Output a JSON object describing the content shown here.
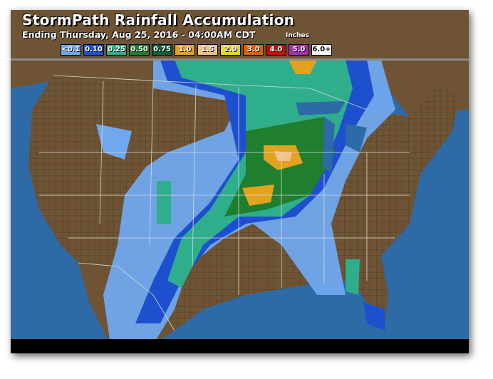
{
  "header": {
    "title": "StormPath Rainfall Accumulation",
    "subtitle": "Ending Thursday, Aug 25, 2016 - 04:00AM CDT",
    "units": "Inches"
  },
  "legend": [
    {
      "label": "<0.1",
      "color": "#6fa8ee"
    },
    {
      "label": "0.10",
      "color": "#1e4fcf"
    },
    {
      "label": "0.25",
      "color": "#2fae8c"
    },
    {
      "label": "0.50",
      "color": "#1f7f2e"
    },
    {
      "label": "0.75",
      "color": "#0f5e3c"
    },
    {
      "label": "1.0",
      "color": "#e3a21e"
    },
    {
      "label": "1.5",
      "color": "#f2c28e"
    },
    {
      "label": "2.0",
      "color": "#dede1a"
    },
    {
      "label": "3.0",
      "color": "#df5f0f"
    },
    {
      "label": "4.0",
      "color": "#bf1010"
    },
    {
      "label": "5.0",
      "color": "#a22fb0"
    },
    {
      "label": "6.0+",
      "color": "#ffffff"
    }
  ],
  "colors": {
    "ocean": "#2d6aa6",
    "land": "#6e5434",
    "county_lines": "#2a1f12",
    "state_lines": "#d8d8d8"
  }
}
